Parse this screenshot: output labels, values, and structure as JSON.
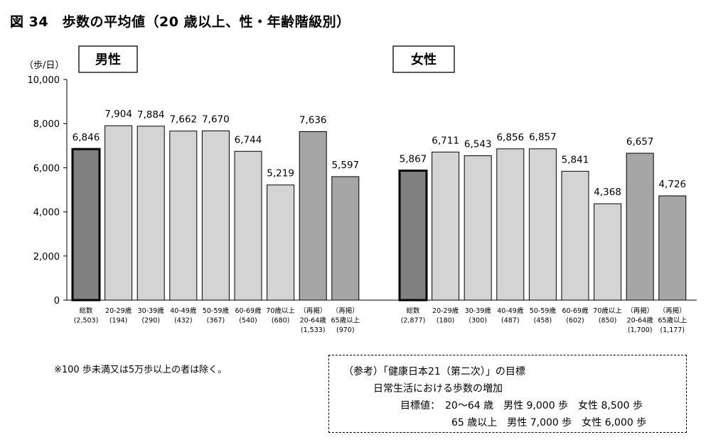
{
  "title": "図 34　歩数の平均値（20 歳以上、性・年齢階級別）",
  "ylabel": "（歩/日）",
  "note": "※100 歩未満又は5万歩以上の者は除く。",
  "reference": {
    "line1": "（参考）「健康日本21（第二次）」の目標",
    "line2": "日常生活における歩数の増加",
    "line3": "目標値：　20～64 歳　男性 9,000 歩　女性 8,500 歩",
    "line4": "65 歳以上　男性 7,000 歩　女性 6,000 歩"
  },
  "colors": {
    "total": "#808080",
    "age": "#d4d4d4",
    "regroup": "#a6a6a6",
    "border": "#000000"
  },
  "chart_data": [
    {
      "type": "bar",
      "title": "男性",
      "ylabel": "（歩/日）",
      "ylim": [
        0,
        10000
      ],
      "yticks": [
        "0",
        "2,000",
        "4,000",
        "6,000",
        "8,000",
        "10,000"
      ],
      "categories": [
        [
          "総数",
          "(2,503)"
        ],
        [
          "20-29歳",
          "(194)"
        ],
        [
          "30-39歳",
          "(290)"
        ],
        [
          "40-49歳",
          "(432)"
        ],
        [
          "50-59歳",
          "(367)"
        ],
        [
          "60-69歳",
          "(540)"
        ],
        [
          "70歳以上",
          "(680)"
        ],
        [
          "（再掲）",
          "20-64歳",
          "(1,533)"
        ],
        [
          "（再掲）",
          "65歳以上",
          "(970)"
        ]
      ],
      "values": [
        6846,
        7904,
        7884,
        7662,
        7670,
        6744,
        5219,
        7636,
        5597
      ],
      "value_labels": [
        "6,846",
        "7,904",
        "7,884",
        "7,662",
        "7,670",
        "6,744",
        "5,219",
        "7,636",
        "5,597"
      ],
      "kinds": [
        "total",
        "age",
        "age",
        "age",
        "age",
        "age",
        "age",
        "regroup",
        "regroup"
      ],
      "grid": false
    },
    {
      "type": "bar",
      "title": "女性",
      "ylim": [
        0,
        10000
      ],
      "categories": [
        [
          "総数",
          "(2,877)"
        ],
        [
          "20-29歳",
          "(180)"
        ],
        [
          "30-39歳",
          "(300)"
        ],
        [
          "40-49歳",
          "(487)"
        ],
        [
          "50-59歳",
          "(458)"
        ],
        [
          "60-69歳",
          "(602)"
        ],
        [
          "70歳以上",
          "(850)"
        ],
        [
          "（再掲）",
          "20-64歳",
          "(1,700)"
        ],
        [
          "（再掲）",
          "65歳以上",
          "(1,177)"
        ]
      ],
      "values": [
        5867,
        6711,
        6543,
        6856,
        6857,
        5841,
        4368,
        6657,
        4726
      ],
      "value_labels": [
        "5,867",
        "6,711",
        "6,543",
        "6,856",
        "6,857",
        "5,841",
        "4,368",
        "6,657",
        "4,726"
      ],
      "kinds": [
        "total",
        "age",
        "age",
        "age",
        "age",
        "age",
        "age",
        "regroup",
        "regroup"
      ],
      "grid": false
    }
  ]
}
